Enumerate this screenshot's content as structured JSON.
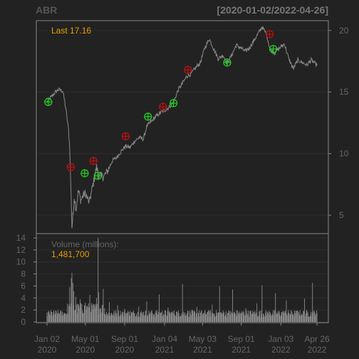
{
  "header": {
    "symbol": "ABR",
    "date_range": "[2020-01-02/2022-04-26]"
  },
  "price_panel": {
    "last_label": "Last 17.16"
  },
  "volume_panel": {
    "label": "Volume (millions):",
    "value": "1,481,700"
  },
  "colors": {
    "background": "#222222",
    "frame": "#888888",
    "grid": "#2e2e2e",
    "price_line": "#8a8a8a",
    "volume_bar": "#8a8a8a",
    "buy_marker": "#22CC22",
    "sell_marker": "#BB1111",
    "accent": "#E69F00"
  },
  "chart_data": [
    {
      "type": "line",
      "title": "ABR",
      "x_range": [
        "2020-01-02",
        "2022-04-26"
      ],
      "ylim": [
        3.5,
        20.8
      ],
      "y_ticks": [
        5,
        10,
        15,
        20
      ],
      "x_ticks": [
        {
          "date": "2020-01-02",
          "line1": "Jan 02",
          "line2": "2020"
        },
        {
          "date": "2020-05-01",
          "line1": "May 01",
          "line2": "2020"
        },
        {
          "date": "2020-09-01",
          "line1": "Sep 01",
          "line2": "2020"
        },
        {
          "date": "2021-01-04",
          "line1": "Jan 04",
          "line2": "2021"
        },
        {
          "date": "2021-05-03",
          "line1": "May 03",
          "line2": "2021"
        },
        {
          "date": "2021-09-01",
          "line1": "Sep 01",
          "line2": "2021"
        },
        {
          "date": "2022-01-03",
          "line1": "Jan 03",
          "line2": "2022"
        },
        {
          "date": "2022-04-26",
          "line1": "Apr 26",
          "line2": "2022"
        }
      ],
      "last": 17.16,
      "grid": true,
      "series": [
        {
          "values": [
            [
              "2020-01-02",
              14.2
            ],
            [
              "2020-01-15",
              14.6
            ],
            [
              "2020-01-28",
              15.0
            ],
            [
              "2020-02-07",
              15.2
            ],
            [
              "2020-02-20",
              15.1
            ],
            [
              "2020-02-26",
              14.3
            ],
            [
              "2020-03-03",
              13.2
            ],
            [
              "2020-03-09",
              12.0
            ],
            [
              "2020-03-13",
              10.5
            ],
            [
              "2020-03-18",
              6.0
            ],
            [
              "2020-03-20",
              4.0
            ],
            [
              "2020-03-24",
              5.2
            ],
            [
              "2020-03-27",
              6.5
            ],
            [
              "2020-04-02",
              5.5
            ],
            [
              "2020-04-09",
              7.0
            ],
            [
              "2020-04-17",
              6.2
            ],
            [
              "2020-04-24",
              6.6
            ],
            [
              "2020-05-01",
              6.8
            ],
            [
              "2020-05-13",
              6.0
            ],
            [
              "2020-05-26",
              7.6
            ],
            [
              "2020-06-05",
              8.9
            ],
            [
              "2020-06-12",
              8.3
            ],
            [
              "2020-06-26",
              8.1
            ],
            [
              "2020-07-10",
              8.6
            ],
            [
              "2020-07-24",
              9.4
            ],
            [
              "2020-08-07",
              9.7
            ],
            [
              "2020-08-21",
              10.2
            ],
            [
              "2020-09-04",
              10.6
            ],
            [
              "2020-09-18",
              10.5
            ],
            [
              "2020-10-02",
              11.0
            ],
            [
              "2020-10-16",
              11.3
            ],
            [
              "2020-10-30",
              11.2
            ],
            [
              "2020-11-09",
              12.2
            ],
            [
              "2020-11-23",
              12.6
            ],
            [
              "2020-12-07",
              13.0
            ],
            [
              "2020-12-21",
              13.3
            ],
            [
              "2021-01-04",
              13.5
            ],
            [
              "2021-01-19",
              13.8
            ],
            [
              "2021-02-01",
              14.2
            ],
            [
              "2021-02-16",
              15.2
            ],
            [
              "2021-03-01",
              15.7
            ],
            [
              "2021-03-15",
              16.3
            ],
            [
              "2021-03-29",
              16.5
            ],
            [
              "2021-04-12",
              17.0
            ],
            [
              "2021-04-26",
              17.4
            ],
            [
              "2021-05-10",
              18.6
            ],
            [
              "2021-05-24",
              19.3
            ],
            [
              "2021-06-07",
              18.5
            ],
            [
              "2021-06-21",
              17.7
            ],
            [
              "2021-07-06",
              18.0
            ],
            [
              "2021-07-19",
              17.3
            ],
            [
              "2021-08-02",
              18.0
            ],
            [
              "2021-08-16",
              18.8
            ],
            [
              "2021-08-30",
              18.6
            ],
            [
              "2021-09-13",
              18.3
            ],
            [
              "2021-09-27",
              18.6
            ],
            [
              "2021-10-11",
              19.2
            ],
            [
              "2021-10-25",
              19.8
            ],
            [
              "2021-11-05",
              20.3
            ],
            [
              "2021-11-19",
              19.7
            ],
            [
              "2021-12-01",
              18.4
            ],
            [
              "2021-12-15",
              18.2
            ],
            [
              "2021-12-31",
              18.6
            ],
            [
              "2022-01-14",
              18.9
            ],
            [
              "2022-01-28",
              17.7
            ],
            [
              "2022-02-11",
              16.9
            ],
            [
              "2022-02-25",
              17.6
            ],
            [
              "2022-03-11",
              17.4
            ],
            [
              "2022-03-25",
              17.2
            ],
            [
              "2022-04-08",
              17.6
            ],
            [
              "2022-04-26",
              17.16
            ]
          ]
        }
      ],
      "markers": [
        {
          "date": "2020-01-06",
          "price": 14.2,
          "kind": "buy"
        },
        {
          "date": "2020-03-16",
          "price": 8.9,
          "kind": "sell"
        },
        {
          "date": "2020-04-29",
          "price": 8.4,
          "kind": "buy"
        },
        {
          "date": "2020-05-26",
          "price": 9.4,
          "kind": "sell"
        },
        {
          "date": "2020-06-09",
          "price": 8.2,
          "kind": "buy"
        },
        {
          "date": "2020-09-04",
          "price": 11.4,
          "kind": "sell"
        },
        {
          "date": "2020-11-13",
          "price": 13.0,
          "kind": "buy"
        },
        {
          "date": "2020-12-30",
          "price": 13.8,
          "kind": "sell"
        },
        {
          "date": "2021-02-01",
          "price": 14.1,
          "kind": "buy"
        },
        {
          "date": "2021-03-18",
          "price": 16.8,
          "kind": "sell"
        },
        {
          "date": "2021-07-19",
          "price": 17.4,
          "kind": "buy"
        },
        {
          "date": "2021-11-29",
          "price": 19.7,
          "kind": "sell"
        },
        {
          "date": "2021-12-10",
          "price": 18.5,
          "kind": "buy"
        }
      ]
    },
    {
      "type": "bar",
      "title": "Volume (millions):",
      "ylim": [
        0,
        14
      ],
      "y_ticks": [
        0,
        2,
        4,
        6,
        8,
        10,
        12,
        14
      ],
      "x_range": [
        "2020-01-02",
        "2022-04-26"
      ],
      "typical_range_millions": [
        0.8,
        2.0
      ],
      "values": [
        [
          "2020-01-02",
          1.6
        ],
        [
          "2020-03-13",
          5.8
        ],
        [
          "2020-03-18",
          7.3
        ],
        [
          "2020-03-20",
          8.2
        ],
        [
          "2020-03-23",
          6.5
        ],
        [
          "2020-03-26",
          5.1
        ],
        [
          "2020-04-01",
          4.2
        ],
        [
          "2020-04-15",
          3.8
        ],
        [
          "2020-05-01",
          3.2
        ],
        [
          "2020-05-15",
          4.5
        ],
        [
          "2020-06-05",
          4.0
        ],
        [
          "2020-06-10",
          14.0
        ],
        [
          "2020-06-12",
          4.9
        ],
        [
          "2020-06-26",
          5.5
        ],
        [
          "2020-07-15",
          3.3
        ],
        [
          "2020-08-10",
          2.8
        ],
        [
          "2020-09-01",
          2.2
        ],
        [
          "2020-10-15",
          2.6
        ],
        [
          "2020-11-09",
          3.4
        ],
        [
          "2020-12-18",
          4.6
        ],
        [
          "2021-01-15",
          2.4
        ],
        [
          "2021-03-01",
          6.3
        ],
        [
          "2021-04-15",
          2.5
        ],
        [
          "2021-06-02",
          2.9
        ],
        [
          "2021-06-25",
          5.9
        ],
        [
          "2021-08-05",
          5.4
        ],
        [
          "2021-09-15",
          2.3
        ],
        [
          "2021-10-20",
          3.1
        ],
        [
          "2021-11-05",
          6.1
        ],
        [
          "2021-12-17",
          4.8
        ],
        [
          "2022-01-20",
          3.6
        ],
        [
          "2022-03-18",
          3.9
        ],
        [
          "2022-04-12",
          6.5
        ],
        [
          "2022-04-26",
          1.48
        ]
      ]
    }
  ]
}
